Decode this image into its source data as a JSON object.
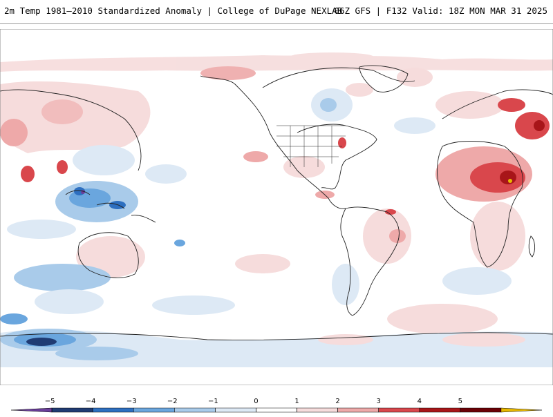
{
  "header": {
    "title_left": "2m Temp 1981–2010 Standardized Anomaly | College of DuPage NEXLAB",
    "title_right": "06Z GFS | F132 Valid: 18Z MON MAR 31 2025"
  },
  "map": {
    "variable": "2m temperature standardized anomaly",
    "projection": "equirectangular, Pacific-centered"
  },
  "colorbar": {
    "ticks": [
      "−5",
      "−4",
      "−3",
      "−2",
      "−1",
      "0",
      "1",
      "2",
      "3",
      "4",
      "5"
    ],
    "colors": [
      "#6a3d9a",
      "#1f3b73",
      "#2d6fc0",
      "#6aa6de",
      "#a9cbea",
      "#dde9f5",
      "#ffffff",
      "#f6dcdc",
      "#eea9a9",
      "#d9474c",
      "#a81519",
      "#6b0006",
      "#e8b800"
    ]
  }
}
